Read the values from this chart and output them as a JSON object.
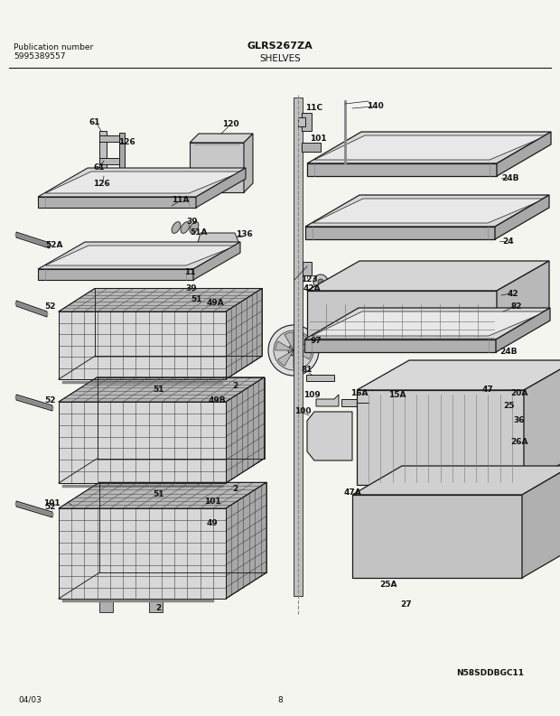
{
  "title": "GLRS267ZA",
  "subtitle": "SHELVES",
  "pub_label": "Publication number",
  "pub_number": "5995389557",
  "date": "04/03",
  "page": "8",
  "diagram_id": "N58SDDBGC11",
  "bg_color": "#f5f5f0",
  "line_color": "#1a1a1a",
  "text_color": "#111111",
  "fig_width": 6.2,
  "fig_height": 7.93,
  "dpi": 100
}
